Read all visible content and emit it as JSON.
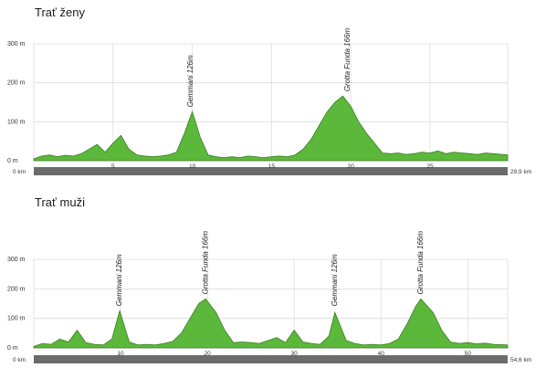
{
  "chart_data": [
    {
      "type": "area",
      "title": "Trať ženy",
      "y_unit": "m",
      "x_unit": "km",
      "ylim": [
        0,
        300
      ],
      "yticks": [
        0,
        100,
        200,
        300
      ],
      "xlim": [
        0,
        29.9
      ],
      "xticks": [
        5,
        10,
        15,
        20,
        25
      ],
      "start_label": "0 km",
      "end_label": "29,9 km",
      "grid": true,
      "color": "#5cb83a",
      "peaks": [
        {
          "name": "Gemmani 126m",
          "x": 9.9,
          "y": 126
        },
        {
          "name": "Grotta Funda 166m",
          "x": 19.8,
          "y": 166
        }
      ],
      "x": [
        0,
        0.5,
        1,
        1.5,
        2,
        2.5,
        3,
        3.5,
        4,
        4.5,
        5,
        5.5,
        6,
        6.5,
        7,
        7.5,
        8,
        8.5,
        9,
        9.5,
        10,
        10.5,
        11,
        11.5,
        12,
        12.5,
        13,
        13.5,
        14,
        14.5,
        15,
        15.5,
        16,
        16.5,
        17,
        17.5,
        18,
        18.5,
        19,
        19.5,
        20,
        20.5,
        21,
        21.5,
        22,
        22.5,
        23,
        23.5,
        24,
        24.5,
        25,
        25.5,
        26,
        26.5,
        27,
        27.5,
        28,
        28.5,
        29,
        29.9
      ],
      "y": [
        5,
        12,
        15,
        10,
        14,
        12,
        18,
        30,
        42,
        22,
        45,
        65,
        30,
        15,
        12,
        10,
        12,
        15,
        22,
        70,
        126,
        60,
        15,
        10,
        8,
        10,
        8,
        12,
        10,
        8,
        10,
        12,
        10,
        15,
        30,
        55,
        90,
        125,
        150,
        166,
        140,
        100,
        70,
        45,
        20,
        18,
        20,
        16,
        18,
        22,
        20,
        25,
        18,
        22,
        20,
        18,
        16,
        20,
        18,
        15
      ]
    },
    {
      "type": "area",
      "title": "Trať muži",
      "y_unit": "m",
      "x_unit": "km",
      "ylim": [
        0,
        300
      ],
      "yticks": [
        0,
        100,
        200,
        300
      ],
      "xlim": [
        0,
        54.6
      ],
      "xticks": [
        10,
        20,
        30,
        40,
        50
      ],
      "start_label": "0 km",
      "end_label": "54,6 km",
      "grid": true,
      "color": "#5cb83a",
      "peaks": [
        {
          "name": "Gemmani 126m",
          "x": 9.9,
          "y": 126
        },
        {
          "name": "Grotta Funda 166m",
          "x": 19.8,
          "y": 166
        },
        {
          "name": "Gemmani 126m",
          "x": 34.7,
          "y": 126
        },
        {
          "name": "Grotta Funda 166m",
          "x": 44.6,
          "y": 166
        }
      ],
      "x": [
        0,
        1,
        2,
        3,
        4,
        5,
        6,
        7,
        8,
        9,
        9.9,
        11,
        12,
        13,
        14,
        15,
        16,
        17,
        18,
        19,
        19.8,
        21,
        22,
        23,
        24,
        25,
        26,
        27,
        28,
        29,
        30,
        31,
        32,
        33,
        34,
        34.7,
        36,
        37,
        38,
        39,
        40,
        41,
        42,
        43,
        44,
        44.6,
        46,
        47,
        48,
        49,
        50,
        51,
        52,
        53,
        54.6
      ],
      "y": [
        5,
        15,
        12,
        30,
        20,
        60,
        18,
        12,
        10,
        30,
        126,
        20,
        10,
        12,
        10,
        15,
        22,
        50,
        100,
        150,
        166,
        120,
        60,
        18,
        20,
        18,
        15,
        25,
        35,
        18,
        60,
        20,
        15,
        12,
        40,
        120,
        25,
        15,
        10,
        12,
        10,
        15,
        30,
        80,
        140,
        166,
        120,
        60,
        20,
        15,
        18,
        14,
        16,
        12,
        10
      ]
    }
  ]
}
